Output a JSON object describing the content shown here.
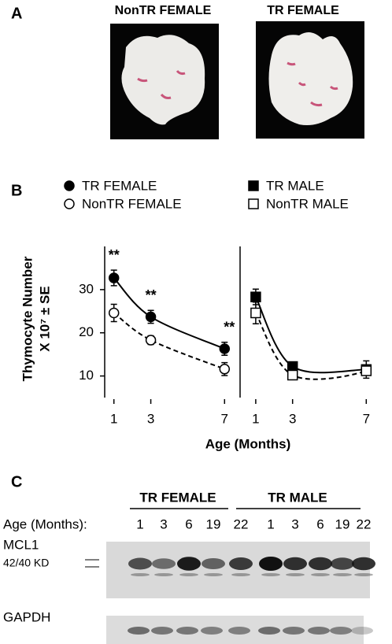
{
  "panel_a": {
    "label": "A",
    "photo_titles": [
      "NonTR FEMALE",
      "TR FEMALE"
    ]
  },
  "panel_b": {
    "label": "B"
  },
  "chart_data": [
    {
      "type": "line",
      "y_label": [
        "Thymocyte Number",
        "X 10⁷ ± SE"
      ],
      "x_label": "Age (Months)",
      "x": [
        1,
        3,
        7
      ],
      "xlim": [
        0.5,
        7.5
      ],
      "xticks": [
        1,
        3,
        7
      ],
      "ylim": [
        5,
        40
      ],
      "yticks": [
        10,
        20,
        30
      ],
      "series": [
        {
          "name": "TR FEMALE",
          "color": "#000000",
          "marker": "circle",
          "filled": true,
          "line": "solid",
          "values": [
            32.7,
            23.7,
            16.3
          ],
          "errors": [
            1.8,
            1.5,
            1.5
          ]
        },
        {
          "name": "NonTR FEMALE",
          "color": "#000000",
          "marker": "circle",
          "filled": false,
          "line": "dashed",
          "values": [
            24.6,
            18.3,
            11.6
          ],
          "errors": [
            2,
            1,
            1.5
          ]
        }
      ],
      "annotations": [
        "**",
        "**",
        "**"
      ]
    },
    {
      "type": "line",
      "x": [
        1,
        3,
        7
      ],
      "xlim": [
        0.15,
        7.5
      ],
      "xticks": [
        1,
        3,
        7
      ],
      "ylim": [
        5,
        40
      ],
      "series": [
        {
          "name": "TR MALE",
          "color": "#000000",
          "marker": "square",
          "filled": true,
          "line": "solid",
          "values": [
            28.3,
            12.2,
            11.5
          ],
          "errors": [
            1.8,
            1,
            2
          ]
        },
        {
          "name": "NonTR MALE",
          "color": "#000000",
          "marker": "square",
          "filled": false,
          "line": "dashed",
          "values": [
            24.6,
            10.2,
            11.2
          ],
          "errors": [
            2.5,
            0.8,
            1
          ]
        }
      ]
    }
  ],
  "panel_c": {
    "label": "C",
    "groups": [
      "TR FEMALE",
      "TR MALE"
    ],
    "age_title": "Age (Months):",
    "ages": [
      "1",
      "3",
      "6",
      "19",
      "22",
      "1",
      "3",
      "6",
      "19",
      "22"
    ],
    "blot_labels": [
      "MCL1",
      "42/40 KD",
      "GAPDH"
    ]
  }
}
